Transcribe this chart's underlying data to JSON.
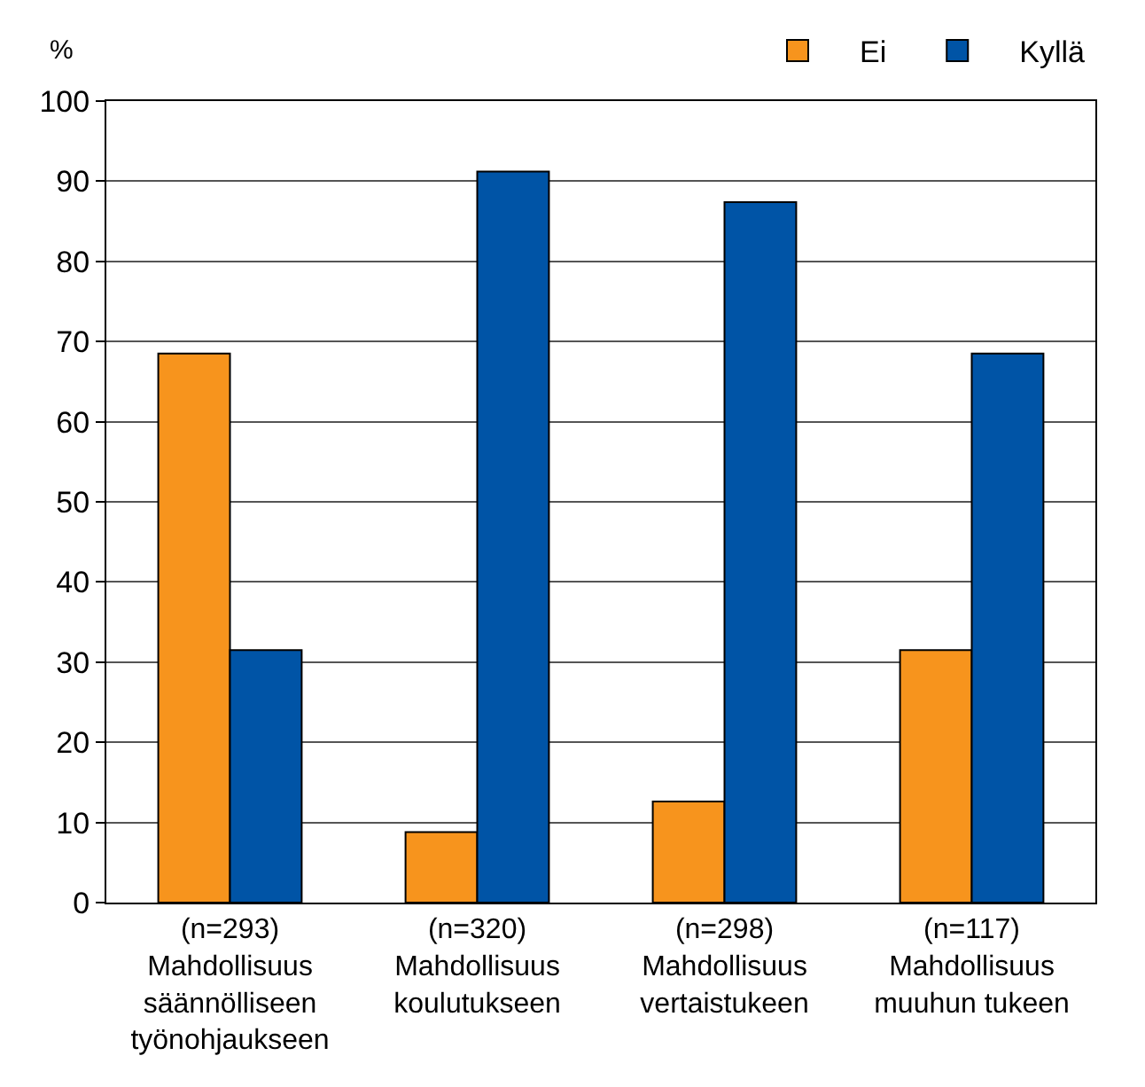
{
  "chart_data": {
    "type": "bar",
    "ylabel": "%",
    "categories": [
      "(n=293)\nMahdollisuus\nsäännölliseen\ntyönohjaukseen",
      "(n=320)\nMahdollisuus\nkoulutukseen",
      "(n=298)\nMahdollisuus\nvertaistukeen",
      "(n=117)\nMahdollisuus\nmuuhun tukeen"
    ],
    "series": [
      {
        "name": "Ei",
        "color": "#f7941d",
        "values": [
          68.5,
          8.8,
          12.6,
          31.5
        ]
      },
      {
        "name": "Kyllä",
        "color": "#0054a6",
        "values": [
          31.5,
          91.2,
          87.4,
          68.5
        ]
      }
    ],
    "ylim": [
      0,
      100
    ],
    "yticks": [
      0,
      10,
      20,
      30,
      40,
      50,
      60,
      70,
      80,
      90,
      100
    ],
    "grid": "y",
    "legend": "top right"
  }
}
